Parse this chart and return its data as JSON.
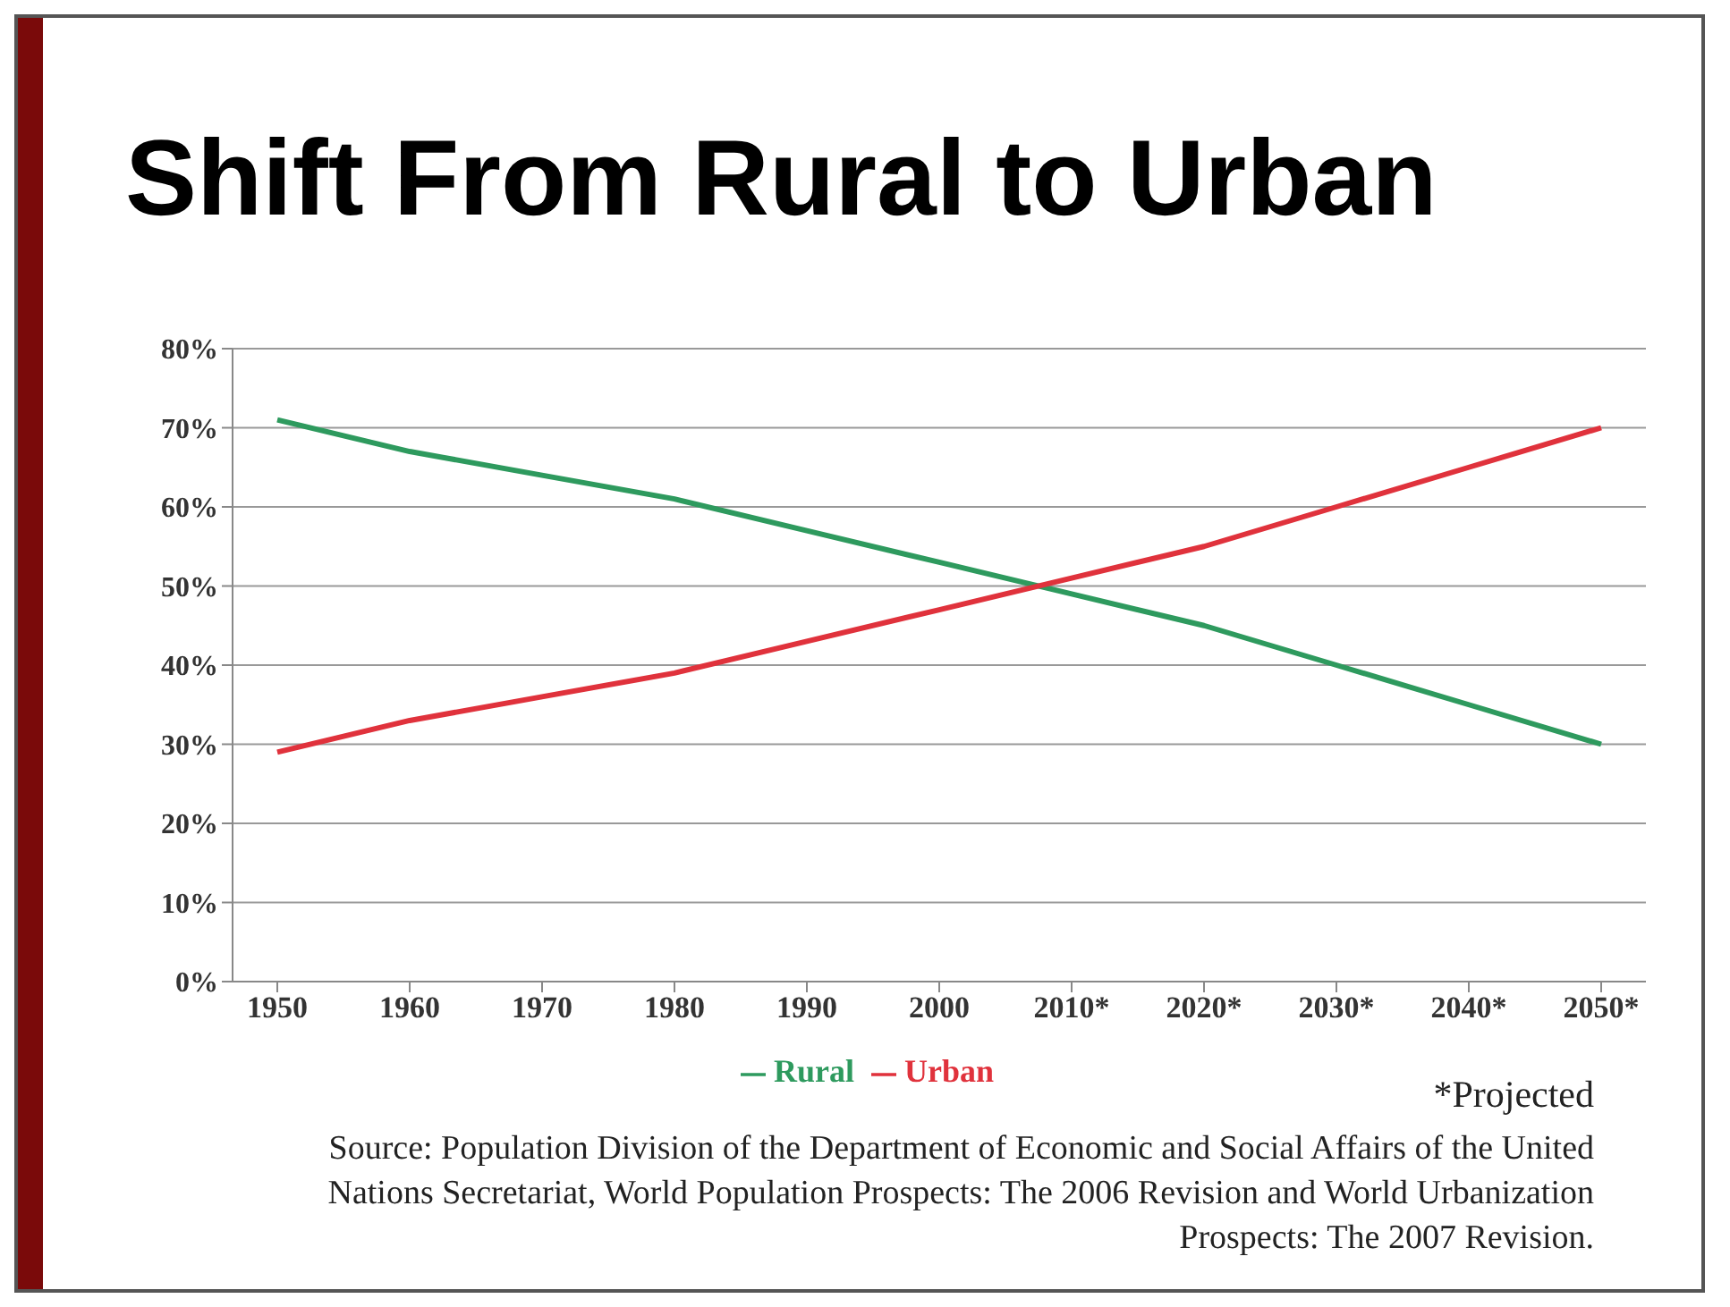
{
  "chart_data": {
    "type": "line",
    "title": "Shift From Rural to Urban",
    "categories": [
      "1950",
      "1960",
      "1970",
      "1980",
      "1990",
      "2000",
      "2010*",
      "2020*",
      "2030*",
      "2040*",
      "2050*"
    ],
    "series": [
      {
        "name": "Rural",
        "color": "#2e9a5e",
        "values": [
          71,
          67,
          64,
          61,
          57,
          53,
          49,
          45,
          40,
          35,
          30
        ]
      },
      {
        "name": "Urban",
        "color": "#e0323c",
        "values": [
          29,
          33,
          36,
          39,
          43,
          47,
          51,
          55,
          60,
          65,
          70
        ]
      }
    ],
    "ylim": [
      0,
      80
    ],
    "yticks": [
      {
        "value": 0,
        "label": "0%"
      },
      {
        "value": 10,
        "label": "10%"
      },
      {
        "value": 20,
        "label": "20%"
      },
      {
        "value": 30,
        "label": "30%"
      },
      {
        "value": 40,
        "label": "40%"
      },
      {
        "value": 50,
        "label": "50%"
      },
      {
        "value": 60,
        "label": "60%"
      },
      {
        "value": 70,
        "label": "70%"
      },
      {
        "value": 80,
        "label": "80%"
      }
    ],
    "grid": "y",
    "legend": "bottom",
    "marker": "none",
    "line_style": "solid",
    "annotations": [
      "*Projected",
      "Source: Population Division of the Department of Economic and Social Affairs of the United Nations Secretariat, World Population Prospects: The 2006 Revision and World Urbanization Prospects: The 2007 Revision."
    ]
  }
}
